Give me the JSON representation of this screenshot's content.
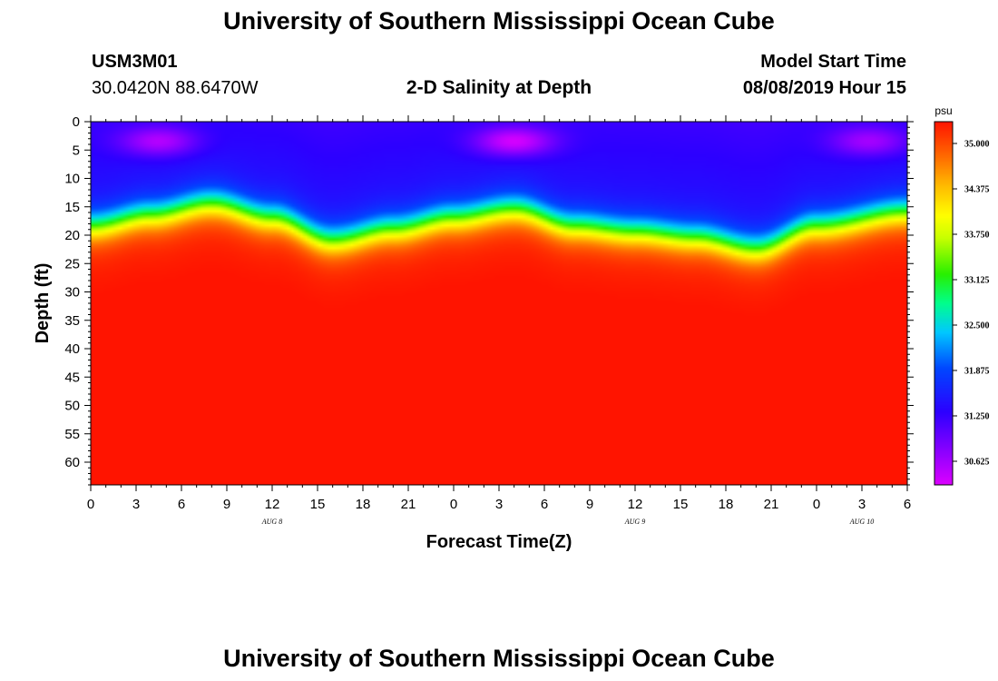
{
  "page": {
    "title_top": "University of Southern Mississippi Ocean Cube",
    "title_bottom": "University of Southern Mississippi Ocean Cube",
    "station_id": "USM3M01",
    "station_coords": "30.0420N 88.6470W",
    "plot_subtitle": "2-D Salinity at Depth",
    "model_start_label": "Model Start Time",
    "model_start_value": "08/08/2019 Hour 15"
  },
  "chart_data": {
    "type": "heatmap",
    "title": "2-D Salinity at Depth",
    "xlabel": "Forecast Time(Z)",
    "ylabel": "Depth (ft)",
    "units": "psu",
    "x_ticks": [
      "0",
      "3",
      "6",
      "9",
      "12",
      "15",
      "18",
      "21",
      "0",
      "3",
      "6",
      "9",
      "12",
      "15",
      "18",
      "21",
      "0",
      "3",
      "6"
    ],
    "x_range_hours": [
      0,
      54
    ],
    "date_labels": [
      {
        "label": "AUG 8",
        "hour": 12
      },
      {
        "label": "AUG 9",
        "hour": 36
      },
      {
        "label": "AUG 10",
        "hour": 51
      }
    ],
    "y_ticks": [
      0,
      5,
      10,
      15,
      20,
      25,
      30,
      35,
      40,
      45,
      50,
      55,
      60
    ],
    "y_range_ft": [
      0,
      64
    ],
    "colorbar": {
      "label": "psu",
      "min": 30.3,
      "max": 35.3,
      "tick_labels": [
        "35.000",
        "34.375",
        "33.750",
        "33.125",
        "32.500",
        "31.875",
        "31.250",
        "30.625"
      ],
      "tick_values": [
        35.0,
        34.375,
        33.75,
        33.125,
        32.5,
        31.875,
        31.25,
        30.625
      ]
    },
    "halocline_depth_ft": [
      {
        "hour": 0,
        "depth": 18.5
      },
      {
        "hour": 4,
        "depth": 16.5
      },
      {
        "hour": 8,
        "depth": 14.5
      },
      {
        "hour": 12,
        "depth": 17
      },
      {
        "hour": 16,
        "depth": 21
      },
      {
        "hour": 20,
        "depth": 19
      },
      {
        "hour": 24,
        "depth": 17
      },
      {
        "hour": 28,
        "depth": 15.5
      },
      {
        "hour": 32,
        "depth": 18.5
      },
      {
        "hour": 36,
        "depth": 19.5
      },
      {
        "hour": 40,
        "depth": 20.5
      },
      {
        "hour": 44,
        "depth": 22.5
      },
      {
        "hour": 48,
        "depth": 18.5
      },
      {
        "hour": 54,
        "depth": 16
      }
    ],
    "surface_salinity_psu": 31.5,
    "bottom_salinity_psu": 35.2,
    "fresh_patches": [
      {
        "hour": 4.5,
        "depth": 3.5,
        "psu": 30.7
      },
      {
        "hour": 28,
        "depth": 3.5,
        "psu": 30.5
      },
      {
        "hour": 51.5,
        "depth": 3.5,
        "psu": 30.8
      }
    ]
  }
}
